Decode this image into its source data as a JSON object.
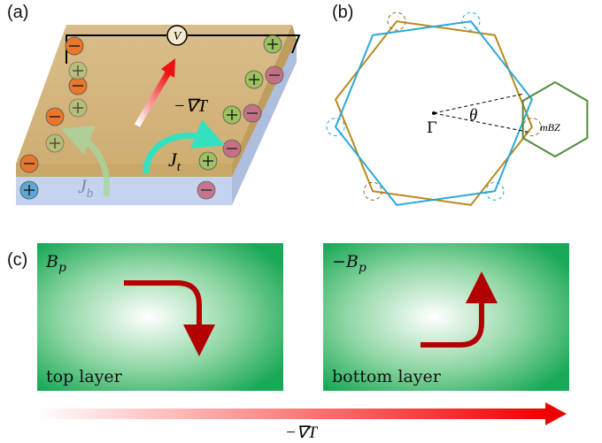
{
  "panel_a": {
    "label": "(a)",
    "voltmeter": "V",
    "gradient": "−∇T",
    "current_top": {
      "symbol": "J",
      "subscript": "t"
    },
    "current_bottom": {
      "symbol": "J",
      "subscript": "b"
    }
  },
  "panel_b": {
    "label": "(b)",
    "center": "Γ",
    "angle": "θ",
    "mini_zone": "mBZ"
  },
  "panel_c": {
    "label": "(c)",
    "top": {
      "field": {
        "symbol": "B",
        "subscript": "p"
      },
      "caption": "top layer"
    },
    "bottom": {
      "field": {
        "prefix": "−",
        "symbol": "B",
        "subscript": "p"
      },
      "caption": "bottom layer"
    },
    "gradient": "−∇T"
  }
}
